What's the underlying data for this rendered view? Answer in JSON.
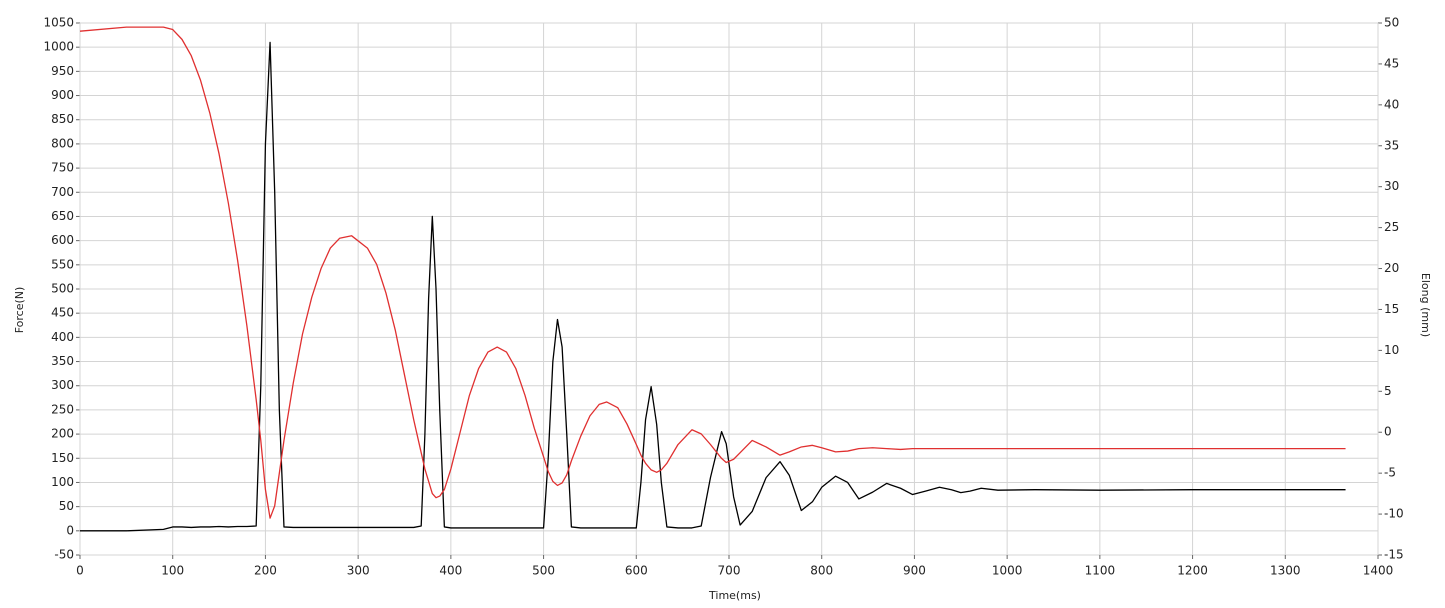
{
  "chart_data": {
    "type": "line",
    "x_label": "Time(ms)",
    "y_label": "Force(N)",
    "y2_label": "Elong (mm)",
    "x": [
      0,
      50,
      90,
      100,
      110,
      120,
      130,
      140,
      150,
      160,
      170,
      180,
      190,
      195,
      200,
      205,
      210,
      215,
      220,
      230,
      240,
      250,
      260,
      270,
      280,
      293,
      310,
      320,
      330,
      340,
      350,
      360,
      368,
      372,
      376,
      380,
      384,
      388,
      393,
      400,
      410,
      420,
      430,
      440,
      450,
      460,
      470,
      480,
      490,
      500,
      505,
      510,
      515,
      520,
      525,
      530,
      540,
      550,
      560,
      568,
      580,
      590,
      600,
      605,
      610,
      616,
      622,
      627,
      633,
      645,
      660,
      670,
      680,
      692,
      697,
      705,
      712,
      725,
      740,
      755,
      765,
      778,
      790,
      800,
      815,
      828,
      840,
      855,
      870,
      885,
      898,
      912,
      927,
      940,
      950,
      960,
      972,
      990,
      1030,
      1100,
      1200,
      1300,
      1365
    ],
    "series": [
      {
        "name": "Force",
        "color": "#000000",
        "axis": "y",
        "values": [
          0,
          0,
          3,
          8,
          8,
          7,
          8,
          8,
          9,
          8,
          9,
          9,
          10,
          300,
          800,
          1010,
          700,
          250,
          8,
          7,
          7,
          7,
          7,
          7,
          7,
          7,
          7,
          7,
          7,
          7,
          7,
          7,
          10,
          200,
          480,
          650,
          500,
          250,
          8,
          6,
          6,
          6,
          6,
          6,
          6,
          6,
          6,
          6,
          6,
          6,
          150,
          350,
          437,
          380,
          200,
          8,
          6,
          6,
          6,
          6,
          6,
          6,
          6,
          100,
          230,
          298,
          220,
          100,
          8,
          6,
          6,
          10,
          110,
          205,
          180,
          70,
          12,
          40,
          110,
          143,
          115,
          42,
          60,
          90,
          113,
          100,
          66,
          80,
          98,
          88,
          75,
          82,
          90,
          85,
          79,
          82,
          88,
          84,
          85,
          84,
          85,
          85,
          85
        ]
      },
      {
        "name": "Elong",
        "color": "#e03030",
        "axis": "y2",
        "values": [
          49,
          49.5,
          49.5,
          49.2,
          48,
          46,
          43,
          39,
          34,
          28,
          21,
          13,
          4,
          -1,
          -7,
          -10.5,
          -9,
          -5,
          -1,
          6,
          12,
          16.5,
          20,
          22.5,
          23.7,
          24,
          22.5,
          20.5,
          17,
          12.5,
          7,
          1.5,
          -2.5,
          -4.5,
          -6,
          -7.5,
          -8,
          -7.8,
          -7,
          -4.5,
          0,
          4.5,
          7.8,
          9.8,
          10.4,
          9.8,
          7.8,
          4.5,
          0.5,
          -3,
          -4.8,
          -6,
          -6.5,
          -6.2,
          -5.2,
          -3.5,
          -0.5,
          2,
          3.4,
          3.7,
          3,
          1,
          -1.5,
          -2.8,
          -3.8,
          -4.6,
          -4.9,
          -4.6,
          -3.8,
          -1.5,
          0.3,
          -0.2,
          -1.5,
          -3.2,
          -3.7,
          -3.3,
          -2.5,
          -1,
          -1.8,
          -2.8,
          -2.4,
          -1.8,
          -1.6,
          -1.9,
          -2.4,
          -2.3,
          -2,
          -1.9,
          -2,
          -2.1,
          -2,
          -2,
          -2,
          -2,
          -2,
          -2,
          -2,
          -2,
          -2,
          -2,
          -2,
          -2,
          -2
        ]
      }
    ],
    "xlim": [
      0,
      1400
    ],
    "xticks": [
      0,
      100,
      200,
      300,
      400,
      500,
      600,
      700,
      800,
      900,
      1000,
      1100,
      1200,
      1300,
      1400
    ],
    "ylim": [
      -50,
      1050
    ],
    "yticks": [
      -50,
      0,
      50,
      100,
      150,
      200,
      250,
      300,
      350,
      400,
      450,
      500,
      550,
      600,
      650,
      700,
      750,
      800,
      850,
      900,
      950,
      1000,
      1050
    ],
    "y2lim": [
      -15,
      50
    ],
    "y2ticks": [
      -15,
      -10,
      -5,
      0,
      5,
      10,
      15,
      20,
      25,
      30,
      35,
      40,
      45,
      50
    ],
    "grid": true
  }
}
